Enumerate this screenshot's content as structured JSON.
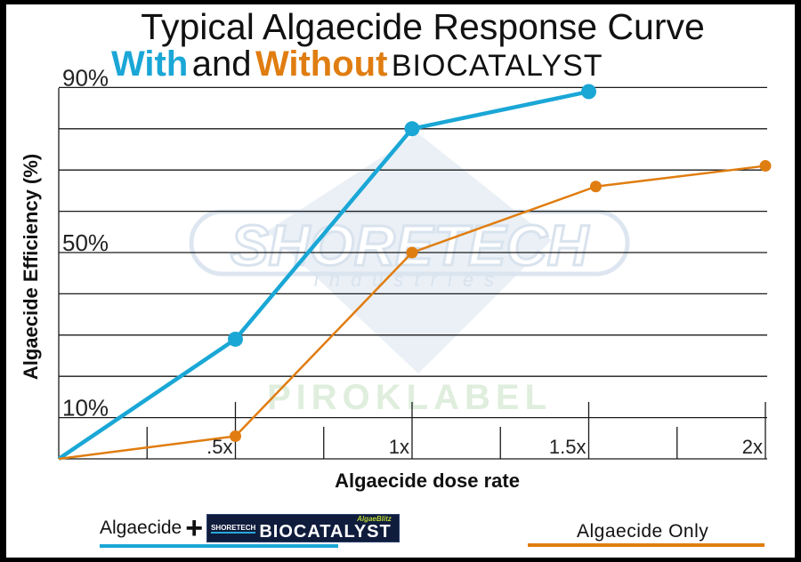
{
  "colors": {
    "blue": "#1aa7d6",
    "orange": "#e07d10",
    "grid": "#1a1a1a",
    "watermark": "#d9e3ee"
  },
  "title": {
    "line1": "Typical Algaecide Response Curve",
    "with_word": "With",
    "and_word": "and",
    "without_word": "Without",
    "biocatalyst_word": "BIOCATALYST"
  },
  "legend": {
    "with_label": "Algaecide",
    "plus": "+",
    "badge_logo": "SHORETECH",
    "badge_brand": "AlgaeBlitz",
    "badge_word": "BIOCATALYST",
    "without_label": "Algaecide Only"
  },
  "watermark": {
    "main": "SHORETECH",
    "sub": "industries",
    "lower": "PIROKLABEL"
  },
  "chart_data": {
    "type": "line",
    "title": "Typical Algaecide Response Curve With and Without BIOCATALYST",
    "xlabel": "Algaecide dose rate",
    "ylabel": "Algaecide Efficiency (%)",
    "xlim": [
      0,
      2
    ],
    "ylim": [
      0,
      90
    ],
    "x_ticks": [
      0.5,
      1,
      1.5,
      2
    ],
    "x_tick_labels": [
      ".5x",
      "1x",
      "1.5x",
      "2x"
    ],
    "y_tick_values": [
      10,
      50,
      90
    ],
    "y_tick_labels": [
      "10%",
      "50%",
      "90%"
    ],
    "grid_lines_y": [
      10,
      20,
      30,
      40,
      50,
      60,
      70,
      80,
      90
    ],
    "series": [
      {
        "name": "Algaecide + BIOCATALYST",
        "color": "#1aa7d6",
        "x": [
          0,
          0.5,
          1,
          1.5
        ],
        "y": [
          0,
          29,
          80,
          89
        ]
      },
      {
        "name": "Algaecide Only",
        "color": "#e07d10",
        "x": [
          0,
          0.5,
          1,
          1.52,
          2
        ],
        "y": [
          0,
          5.5,
          50,
          66,
          71
        ]
      }
    ]
  }
}
